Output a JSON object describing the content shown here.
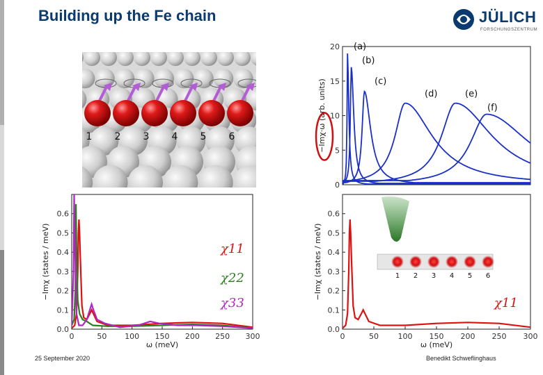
{
  "title": "Building up the Fe chain",
  "logo": {
    "name": "JÜLICH",
    "subtitle": "FORSCHUNGSZENTRUM",
    "icon": "juelich-logo-icon"
  },
  "footer": {
    "date": "25 September 2020",
    "author": "Benedikt Schweflinghaus"
  },
  "atoms": {
    "labels": [
      "1",
      "2",
      "3",
      "4",
      "5",
      "6"
    ],
    "color": "#cc1111"
  },
  "chain_inset": {
    "labels": [
      "1",
      "2",
      "3",
      "4",
      "5",
      "6"
    ]
  },
  "chart_data": [
    {
      "type": "line",
      "ylabel": "−Imχ·ω (arb. units)",
      "ylim": [
        0,
        20
      ],
      "yticks": [
        0,
        5,
        10,
        15,
        20
      ],
      "xlim": [
        0,
        300
      ],
      "color": "#1a2fc8",
      "series": [
        {
          "name": "(a)",
          "peak_x": 8,
          "peak_y": 19.0,
          "width": 1.0
        },
        {
          "name": "(b)",
          "peak_x": 14,
          "peak_y": 17.0,
          "width": 2.0
        },
        {
          "name": "(c)",
          "peak_x": 35,
          "peak_y": 13.5,
          "width": 5.0
        },
        {
          "name": "(d)",
          "peak_x": 100,
          "peak_y": 11.8,
          "width": 22
        },
        {
          "name": "(e)",
          "peak_x": 180,
          "peak_y": 11.8,
          "width": 30
        },
        {
          "name": "(f)",
          "peak_x": 230,
          "peak_y": 10.2,
          "width": 35
        }
      ]
    },
    {
      "type": "line",
      "ylabel": "−Imχ (states / meV)",
      "xlabel": "ω (meV)",
      "ylim": [
        0,
        0.7
      ],
      "yticks": [
        0.0,
        0.1,
        0.2,
        0.3,
        0.4,
        0.5,
        0.6
      ],
      "xlim": [
        0,
        300
      ],
      "xticks": [
        0,
        50,
        100,
        150,
        200,
        250,
        300
      ],
      "series": [
        {
          "name": "χ11",
          "color": "#dd1111",
          "points": [
            [
              0,
              0.005
            ],
            [
              5,
              0.02
            ],
            [
              8,
              0.08
            ],
            [
              10,
              0.3
            ],
            [
              11,
              0.5
            ],
            [
              12,
              0.57
            ],
            [
              13,
              0.5
            ],
            [
              15,
              0.3
            ],
            [
              17,
              0.12
            ],
            [
              20,
              0.06
            ],
            [
              25,
              0.05
            ],
            [
              30,
              0.08
            ],
            [
              33,
              0.1
            ],
            [
              36,
              0.08
            ],
            [
              42,
              0.04
            ],
            [
              60,
              0.02
            ],
            [
              100,
              0.02
            ],
            [
              150,
              0.03
            ],
            [
              200,
              0.035
            ],
            [
              250,
              0.03
            ],
            [
              300,
              0.01
            ]
          ]
        },
        {
          "name": "χ22",
          "color": "#2a7d1c",
          "points": [
            [
              0,
              0.02
            ],
            [
              4,
              0.05
            ],
            [
              6,
              0.2
            ],
            [
              7,
              0.65
            ],
            [
              8,
              0.4
            ],
            [
              10,
              0.15
            ],
            [
              13,
              0.08
            ],
            [
              18,
              0.05
            ],
            [
              25,
              0.04
            ],
            [
              35,
              0.02
            ],
            [
              60,
              0.015
            ],
            [
              100,
              0.015
            ],
            [
              150,
              0.02
            ],
            [
              200,
              0.025
            ],
            [
              250,
              0.02
            ],
            [
              300,
              0.005
            ]
          ]
        },
        {
          "name": "χ33",
          "color": "#b026c0",
          "points": [
            [
              0,
              0.02
            ],
            [
              3,
              0.3
            ],
            [
              4,
              0.7
            ],
            [
              5,
              0.5
            ],
            [
              8,
              0.08
            ],
            [
              12,
              0.02
            ],
            [
              18,
              0.02
            ],
            [
              25,
              0.05
            ],
            [
              30,
              0.1
            ],
            [
              33,
              0.13
            ],
            [
              36,
              0.1
            ],
            [
              42,
              0.05
            ],
            [
              55,
              0.03
            ],
            [
              80,
              0.01
            ],
            [
              110,
              0.02
            ],
            [
              130,
              0.04
            ],
            [
              145,
              0.03
            ],
            [
              175,
              0.02
            ],
            [
              205,
              0.02
            ],
            [
              250,
              0.015
            ],
            [
              300,
              0.005
            ]
          ]
        }
      ]
    },
    {
      "type": "line",
      "ylabel": "−Imχ (states / meV)",
      "xlabel": "ω (meV)",
      "ylim": [
        0,
        0.7
      ],
      "yticks": [
        0.0,
        0.1,
        0.2,
        0.3,
        0.4,
        0.5,
        0.6
      ],
      "xlim": [
        0,
        300
      ],
      "xticks": [
        0,
        50,
        100,
        150,
        200,
        250,
        300
      ],
      "series": [
        {
          "name": "χ11",
          "color": "#dd1111",
          "points": [
            [
              0,
              0.005
            ],
            [
              5,
              0.02
            ],
            [
              8,
              0.08
            ],
            [
              10,
              0.3
            ],
            [
              11,
              0.5
            ],
            [
              12,
              0.57
            ],
            [
              13,
              0.5
            ],
            [
              15,
              0.3
            ],
            [
              17,
              0.12
            ],
            [
              20,
              0.06
            ],
            [
              25,
              0.05
            ],
            [
              30,
              0.08
            ],
            [
              33,
              0.1
            ],
            [
              36,
              0.08
            ],
            [
              42,
              0.04
            ],
            [
              60,
              0.02
            ],
            [
              100,
              0.02
            ],
            [
              150,
              0.03
            ],
            [
              200,
              0.035
            ],
            [
              250,
              0.03
            ],
            [
              300,
              0.01
            ]
          ]
        }
      ]
    }
  ]
}
